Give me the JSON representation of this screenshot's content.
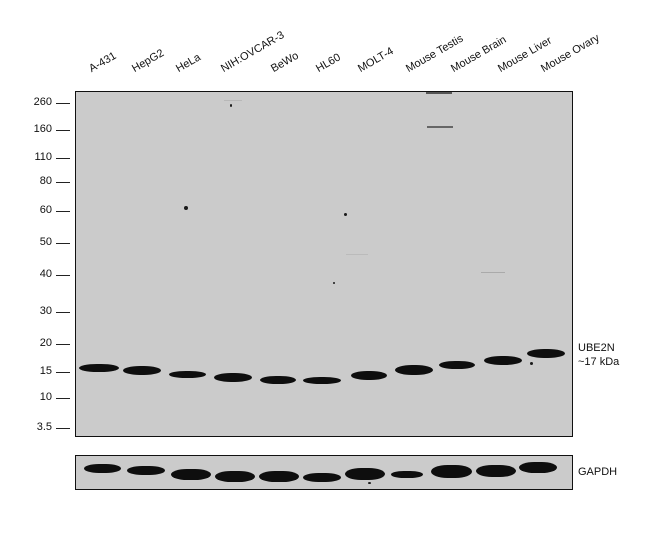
{
  "lanes": [
    "A-431",
    "HepG2",
    "HeLa",
    "NIH:OVCAR-3",
    "BeWo",
    "HL60",
    "MOLT-4",
    "Mouse Testis",
    "Mouse Brain",
    "Mouse Liver",
    "Mouse Ovary"
  ],
  "markers": [
    "260",
    "160",
    "110",
    "80",
    "60",
    "50",
    "40",
    "30",
    "20",
    "15",
    "10",
    "3.5"
  ],
  "target": {
    "name": "UBE2N",
    "size": "~17 kDa"
  },
  "loading_control": {
    "name": "GAPDH"
  },
  "colors": {
    "membrane": "#cbcbcb",
    "band": "#0e0e0e",
    "frame": "#111111"
  }
}
